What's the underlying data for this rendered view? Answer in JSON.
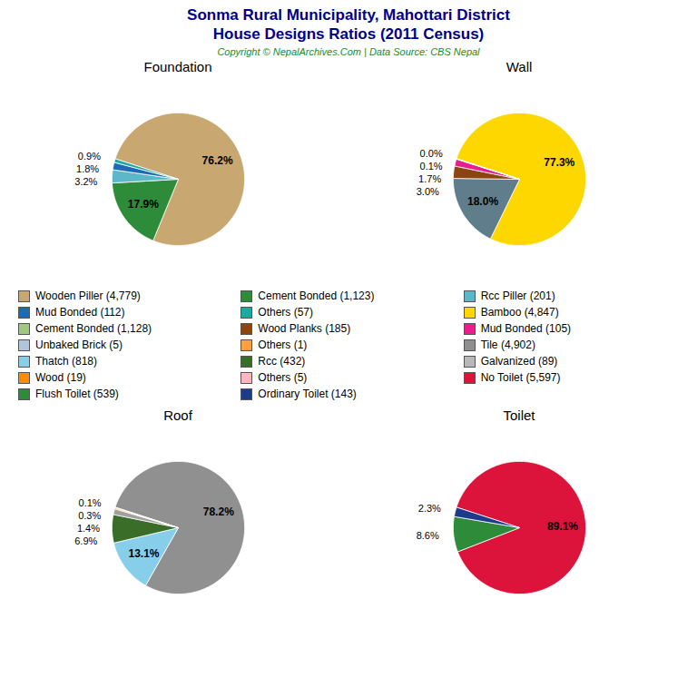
{
  "title": "Sonma Rural Municipality, Mahottari District",
  "subtitle": "House Designs Ratios (2011 Census)",
  "annotations": [
    "Copyright © NepalArchives.Com | Data Source: CBS Nepal"
  ],
  "legend_entries": [
    {
      "name": "Wooden Piller (4,779)",
      "color": "#c8a870"
    },
    {
      "name": "Cement Bonded (1,123)",
      "color": "#2e8b3a"
    },
    {
      "name": "Rcc Piller (201)",
      "color": "#5bb8c8"
    },
    {
      "name": "Mud Bonded (112)",
      "color": "#1e6ab4"
    },
    {
      "name": "Others (57)",
      "color": "#20a8a0"
    },
    {
      "name": "Bamboo (4,847)",
      "color": "#ffd700"
    },
    {
      "name": "Cement Bonded (1,128)",
      "color": "#a0c880"
    },
    {
      "name": "Wood Planks (185)",
      "color": "#8b4513"
    },
    {
      "name": "Mud Bonded (105)",
      "color": "#e91e8c"
    },
    {
      "name": "Unbaked Brick (5)",
      "color": "#b0c4de"
    },
    {
      "name": "Others (1)",
      "color": "#ffa040"
    },
    {
      "name": "Tile (4,902)",
      "color": "#909090"
    },
    {
      "name": "Thatch (818)",
      "color": "#87ceeb"
    },
    {
      "name": "Rcc (432)",
      "color": "#3a6e28"
    },
    {
      "name": "Galvanized (89)",
      "color": "#b8b8b8"
    },
    {
      "name": "Wood (19)",
      "color": "#ff8c00"
    },
    {
      "name": "Others (5)",
      "color": "#ffb6c1"
    },
    {
      "name": "No Toilet (5,597)",
      "color": "#dc143c"
    },
    {
      "name": "Flush Toilet (539)",
      "color": "#2e8b3a"
    },
    {
      "name": "Ordinary Toilet (143)",
      "color": "#1e3a8a"
    }
  ],
  "chart_data": [
    {
      "type": "pie",
      "title": "Foundation",
      "values": [
        76.2,
        17.9,
        3.2,
        1.8,
        0.9
      ],
      "value_labels": [
        "76.2%",
        "17.9%",
        "3.2%",
        "1.8%",
        "0.9%"
      ],
      "colors": [
        "#c8a870",
        "#2e8b3a",
        "#5bb8c8",
        "#1e6ab4",
        "#20a8a0"
      ],
      "data_labels": true
    },
    {
      "type": "pie",
      "title": "Wall",
      "values": [
        77.3,
        18.0,
        3.0,
        1.7,
        0.1,
        0.0
      ],
      "value_labels": [
        "77.3%",
        "18.0%",
        "3.0%",
        "1.7%",
        "0.1%",
        "0.0%"
      ],
      "colors": [
        "#ffd700",
        "#607d8b",
        "#8b4513",
        "#e91e8c",
        "#c0c0c0",
        "#e0e0e0"
      ],
      "data_labels": true
    },
    {
      "type": "pie",
      "title": "Roof",
      "values": [
        78.2,
        13.1,
        6.9,
        1.4,
        0.3,
        0.1
      ],
      "value_labels": [
        "78.2%",
        "13.1%",
        "6.9%",
        "1.4%",
        "0.3%",
        "0.1%"
      ],
      "colors": [
        "#909090",
        "#87ceeb",
        "#3a6e28",
        "#a0a0a0",
        "#ffa040",
        "#ffd700"
      ],
      "data_labels": true
    },
    {
      "type": "pie",
      "title": "Toilet",
      "values": [
        89.1,
        8.6,
        2.3
      ],
      "value_labels": [
        "89.1%",
        "8.6%",
        "2.3%"
      ],
      "colors": [
        "#dc143c",
        "#2e8b3a",
        "#1e3a8a"
      ],
      "data_labels": true
    }
  ]
}
